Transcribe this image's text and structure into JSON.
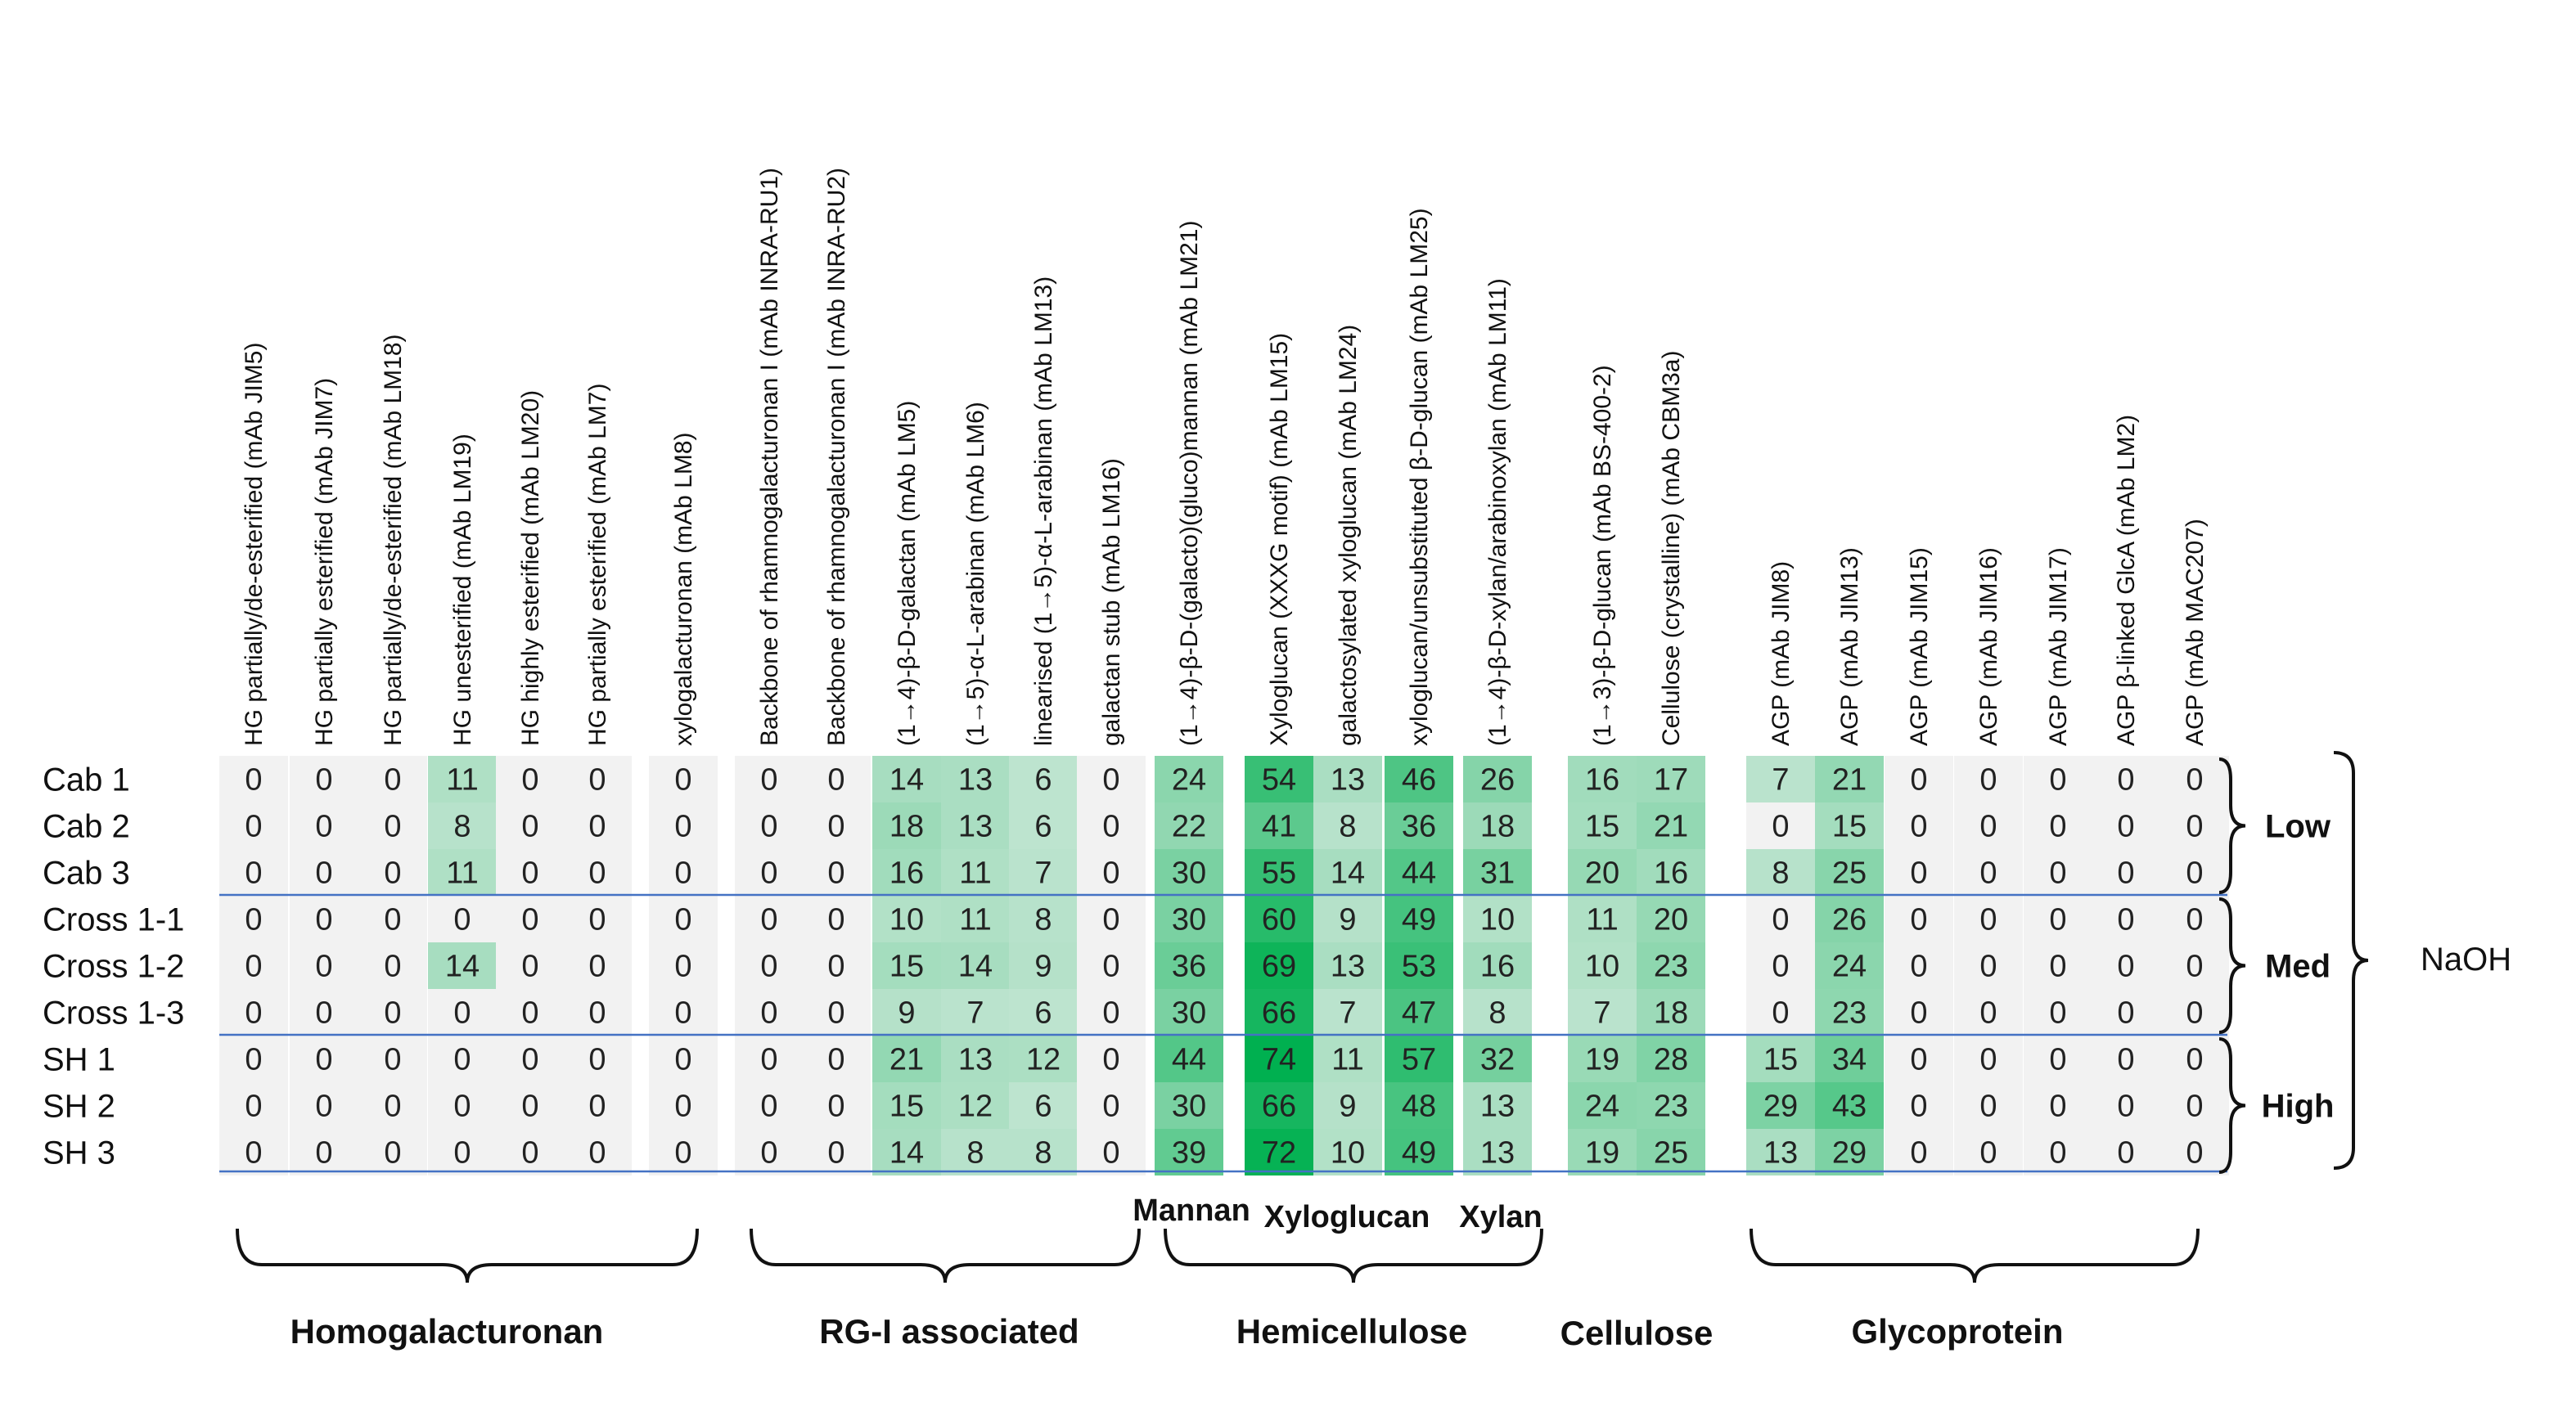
{
  "chart_data": {
    "type": "heatmap",
    "colors": {
      "low": "#f2f2f2",
      "high": "#00b050"
    },
    "vmax": 74,
    "columns": [
      "HG partially/de-esterified (mAb JIM5)",
      "HG partially esterified (mAb JIM7)",
      "HG partially/de-esterified (mAb LM18)",
      "HG unesterified (mAb LM19)",
      "HG highly esterified (mAb LM20)",
      "HG partially esterified (mAb LM7)",
      "xylogalacturonan (mAb LM8)",
      "Backbone of rhamnogalacturonan I (mAb INRA-RU1)",
      "Backbone of rhamnogalacturonan I (mAb INRA-RU2)",
      "(1→4)-β-D-galactan (mAb LM5)",
      "(1→5)-α-L-arabinan (mAb LM6)",
      "linearised (1→5)-α-L-arabinan (mAb LM13)",
      "galactan stub (mAb LM16)",
      "(1→4)-β-D-(galacto)(gluco)mannan (mAb LM21)",
      "Xyloglucan (XXXG motif) (mAb LM15)",
      "galactosylated xyloglucan (mAb LM24)",
      "xyloglucan/unsubstituted β-D-glucan (mAb LM25)",
      "(1→4)-β-D-xylan/arabinoxylan (mAb LM11)",
      "(1→3)-β-D-glucan (mAb BS-400-2)",
      "Cellulose (crystalline) (mAb CBM3a)",
      "AGP (mAb JIM8)",
      "AGP (mAb JIM13)",
      "AGP (mAb JIM15)",
      "AGP (mAb JIM16)",
      "AGP (mAb JIM17)",
      "AGP β-linked GlcA (mAb LM2)",
      "AGP (mAb MAC207)"
    ],
    "rows": [
      "Cab 1",
      "Cab 2",
      "Cab 3",
      "Cross 1-1",
      "Cross 1-2",
      "Cross 1-3",
      "SH 1",
      "SH 2",
      "SH 3"
    ],
    "values": [
      [
        0,
        0,
        0,
        11,
        0,
        0,
        0,
        0,
        0,
        14,
        13,
        6,
        0,
        24,
        54,
        13,
        46,
        26,
        16,
        17,
        7,
        21,
        0,
        0,
        0,
        0,
        0
      ],
      [
        0,
        0,
        0,
        8,
        0,
        0,
        0,
        0,
        0,
        18,
        13,
        6,
        0,
        22,
        41,
        8,
        36,
        18,
        15,
        21,
        0,
        15,
        0,
        0,
        0,
        0,
        0
      ],
      [
        0,
        0,
        0,
        11,
        0,
        0,
        0,
        0,
        0,
        16,
        11,
        7,
        0,
        30,
        55,
        14,
        44,
        31,
        20,
        16,
        8,
        25,
        0,
        0,
        0,
        0,
        0
      ],
      [
        0,
        0,
        0,
        0,
        0,
        0,
        0,
        0,
        0,
        10,
        11,
        8,
        0,
        30,
        60,
        9,
        49,
        10,
        11,
        20,
        0,
        26,
        0,
        0,
        0,
        0,
        0
      ],
      [
        0,
        0,
        0,
        14,
        0,
        0,
        0,
        0,
        0,
        15,
        14,
        9,
        0,
        36,
        69,
        13,
        53,
        16,
        10,
        23,
        0,
        24,
        0,
        0,
        0,
        0,
        0
      ],
      [
        0,
        0,
        0,
        0,
        0,
        0,
        0,
        0,
        0,
        9,
        7,
        6,
        0,
        30,
        66,
        7,
        47,
        8,
        7,
        18,
        0,
        23,
        0,
        0,
        0,
        0,
        0
      ],
      [
        0,
        0,
        0,
        0,
        0,
        0,
        0,
        0,
        0,
        21,
        13,
        12,
        0,
        44,
        74,
        11,
        57,
        32,
        19,
        28,
        15,
        34,
        0,
        0,
        0,
        0,
        0
      ],
      [
        0,
        0,
        0,
        0,
        0,
        0,
        0,
        0,
        0,
        15,
        12,
        6,
        0,
        30,
        66,
        9,
        48,
        13,
        24,
        23,
        29,
        43,
        0,
        0,
        0,
        0,
        0
      ],
      [
        0,
        0,
        0,
        0,
        0,
        0,
        0,
        0,
        0,
        14,
        8,
        8,
        0,
        39,
        72,
        10,
        49,
        13,
        19,
        25,
        13,
        29,
        0,
        0,
        0,
        0,
        0
      ]
    ],
    "row_groups": [
      {
        "label": "Low",
        "rows": [
          0,
          2
        ]
      },
      {
        "label": "Med",
        "rows": [
          3,
          5
        ]
      },
      {
        "label": "High",
        "rows": [
          6,
          8
        ]
      }
    ],
    "treatment_label": "NaOH",
    "column_groups": [
      {
        "label": "Homogalacturonan",
        "cols": [
          0,
          6
        ]
      },
      {
        "label": "RG-I associated",
        "cols": [
          7,
          12
        ]
      },
      {
        "label": "Hemicellulose",
        "cols": [
          13,
          17
        ]
      },
      {
        "label": "Cellulose",
        "cols": [
          18,
          19
        ]
      },
      {
        "label": "Glycoprotein",
        "cols": [
          20,
          26
        ]
      }
    ],
    "hemicellulose_subgroups": [
      {
        "label": "Mannan",
        "cols": [
          13,
          13
        ]
      },
      {
        "label": "Xyloglucan",
        "cols": [
          14,
          16
        ]
      },
      {
        "label": "Xylan",
        "cols": [
          17,
          17
        ]
      }
    ]
  }
}
